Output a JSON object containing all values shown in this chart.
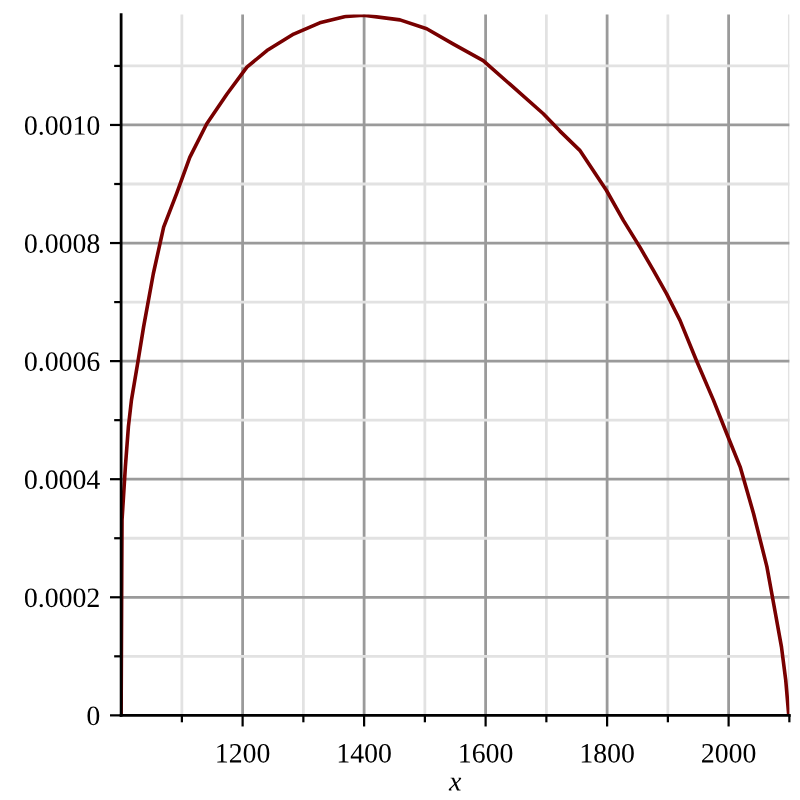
{
  "chart_data": {
    "type": "line",
    "xlabel": "x",
    "x": [
      1000,
      1001,
      1001.5,
      1007,
      1012,
      1017,
      1028,
      1037,
      1053,
      1070,
      1091,
      1113,
      1141,
      1174,
      1207,
      1240,
      1284,
      1327,
      1371,
      1399,
      1459,
      1503,
      1547,
      1596,
      1640,
      1695,
      1722,
      1755,
      1799,
      1827,
      1854,
      1876,
      1898,
      1920,
      1947,
      1975,
      1997,
      2019,
      2041,
      2063,
      2077,
      2087,
      2094,
      2099
    ],
    "series": [
      {
        "color": "#780000",
        "values": [
          0,
          0.000235,
          0.000331,
          0.000421,
          0.000489,
          0.000534,
          0.000601,
          0.000658,
          0.000748,
          0.000827,
          0.000883,
          0.000945,
          0.001002,
          0.001052,
          0.001098,
          0.001126,
          0.001154,
          0.001173,
          0.001184,
          0.001186,
          0.001178,
          0.001163,
          0.001137,
          0.001109,
          0.001069,
          0.001019,
          0.00099,
          0.000957,
          0.000889,
          0.000838,
          0.000793,
          0.000754,
          0.000714,
          0.000669,
          0.000601,
          0.000534,
          0.000477,
          0.000421,
          0.000342,
          0.000252,
          0.000173,
          0.000116,
          6e-05,
          0
        ]
      }
    ],
    "xlim": [
      1000,
      2100
    ],
    "ylim": [
      0,
      0.001187
    ],
    "xticks": [
      {
        "value": 1100,
        "label": null
      },
      1200,
      {
        "value": 1300,
        "label": null
      },
      1400,
      {
        "value": 1500,
        "label": null
      },
      1600,
      {
        "value": 1700,
        "label": null
      },
      1800,
      {
        "value": 1900,
        "label": null
      },
      2000,
      {
        "value": 2100,
        "label": null
      }
    ],
    "yticks": [
      0,
      {
        "value": 0.0001,
        "label": null
      },
      0.0002,
      {
        "value": 0.0003,
        "label": null
      },
      0.0004,
      {
        "value": 0.0005,
        "label": null
      },
      0.0006,
      {
        "value": 0.0007,
        "label": null
      },
      0.0008,
      {
        "value": 0.0009,
        "label": null
      },
      {
        "value": 0.001,
        "label": "0.0010"
      },
      {
        "value": 0.0011,
        "label": null
      }
    ],
    "grid": true,
    "line_style": "solid"
  }
}
